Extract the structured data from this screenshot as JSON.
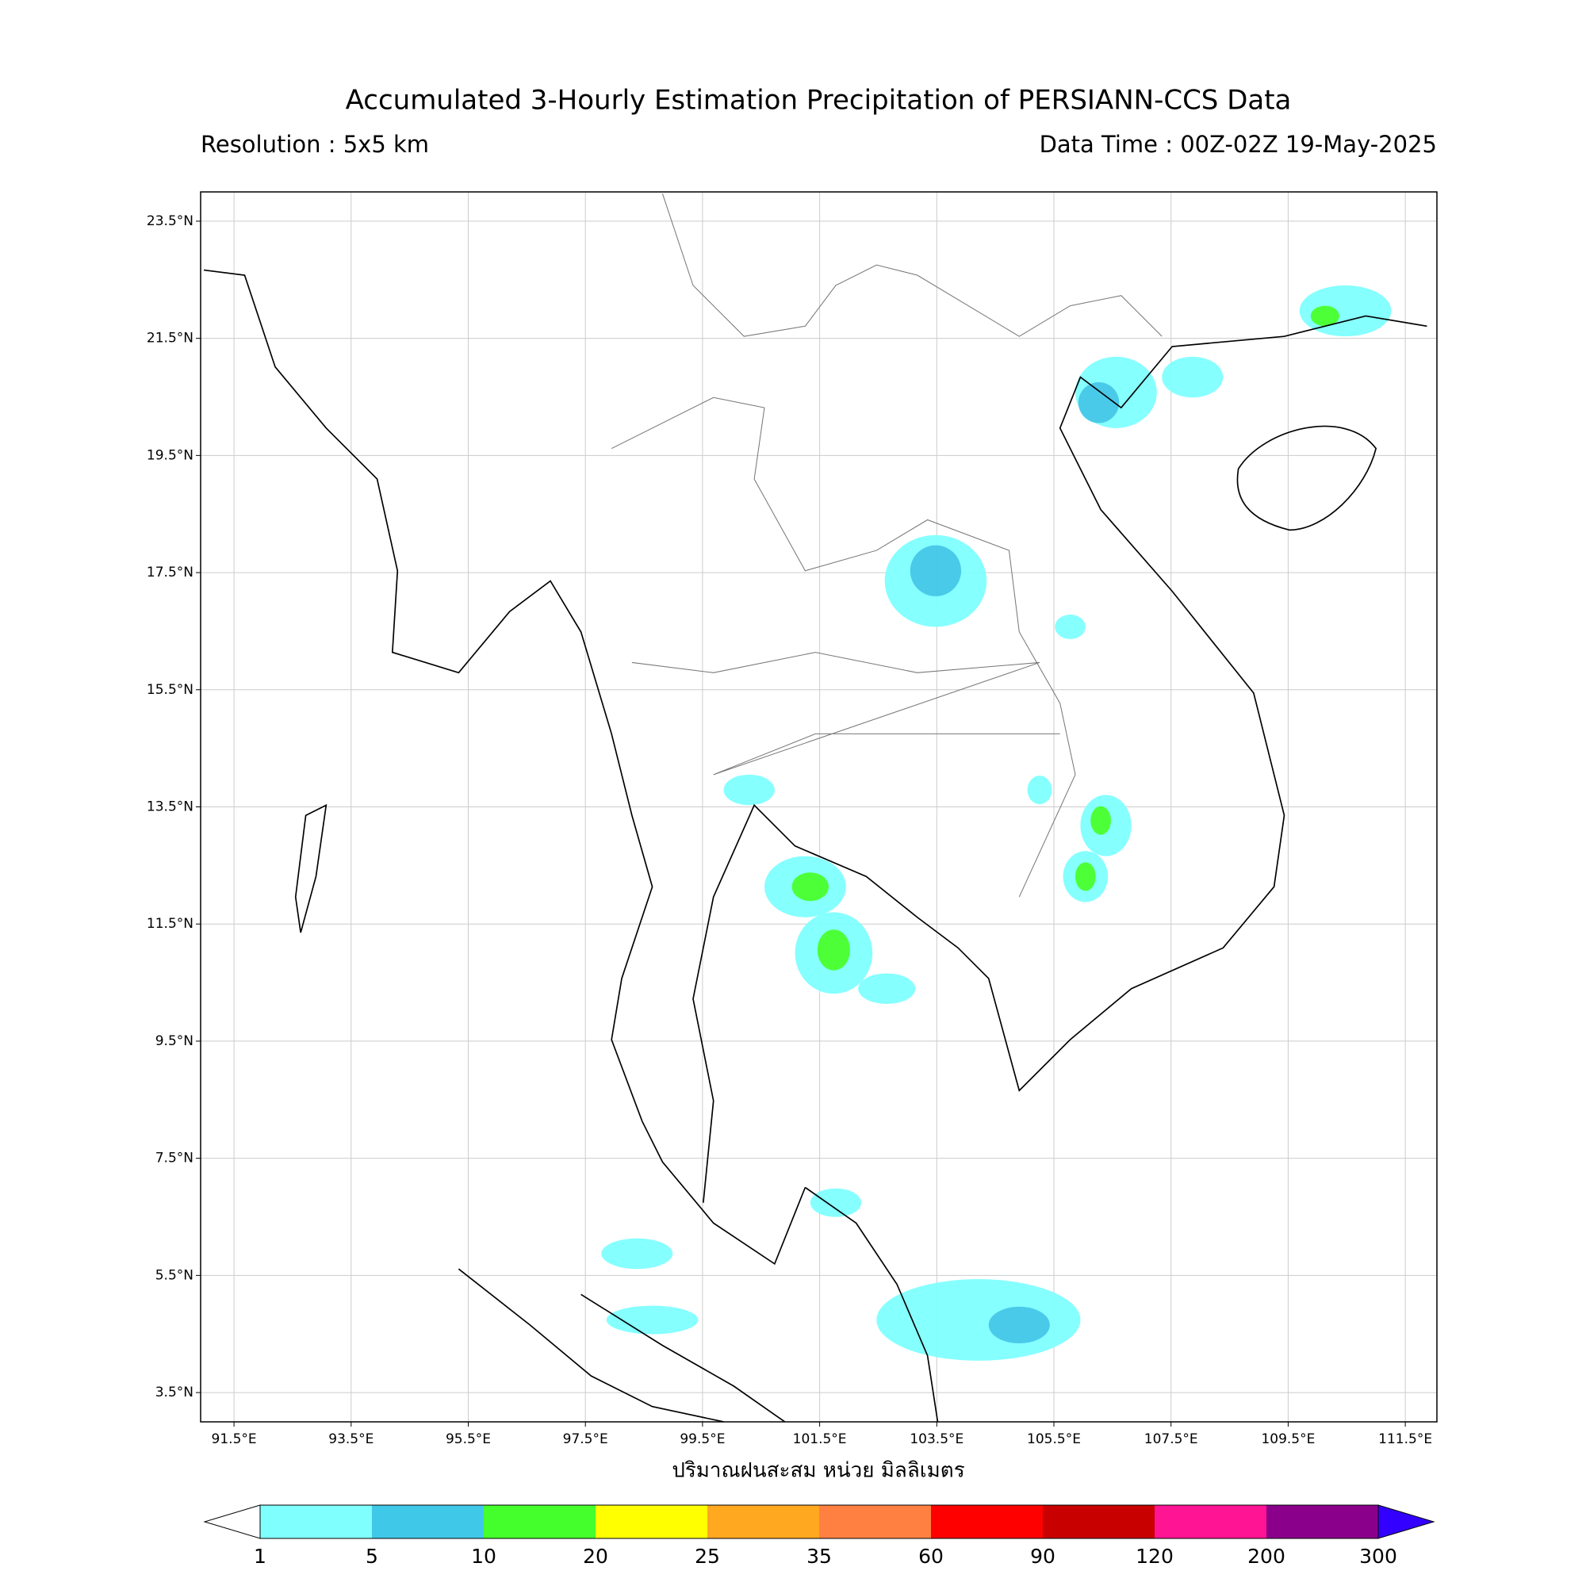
{
  "title": "Accumulated 3-Hourly Estimation Precipitation of PERSIANN-CCS Data",
  "resolution": "Resolution : 5x5 km",
  "data_time": "Data Time : 00Z-02Z 19-May-2025",
  "xlabel": "ปริมาณฝนสะสม หน่วย มิลลิเมตร",
  "xlim": [
    90.93,
    112.04
  ],
  "ylim": [
    3.0,
    24.0
  ],
  "grid": true,
  "xticks": [
    {
      "value": 91.5,
      "label": "91.5°E"
    },
    {
      "value": 93.5,
      "label": "93.5°E"
    },
    {
      "value": 95.5,
      "label": "95.5°E"
    },
    {
      "value": 97.5,
      "label": "97.5°E"
    },
    {
      "value": 99.5,
      "label": "99.5°E"
    },
    {
      "value": 101.5,
      "label": "101.5°E"
    },
    {
      "value": 103.5,
      "label": "103.5°E"
    },
    {
      "value": 105.5,
      "label": "105.5°E"
    },
    {
      "value": 107.5,
      "label": "107.5°E"
    },
    {
      "value": 109.5,
      "label": "109.5°E"
    },
    {
      "value": 111.5,
      "label": "111.5°E"
    }
  ],
  "yticks": [
    {
      "value": 3.5,
      "label": "3.5°N"
    },
    {
      "value": 5.5,
      "label": "5.5°N"
    },
    {
      "value": 7.5,
      "label": "7.5°N"
    },
    {
      "value": 9.5,
      "label": "9.5°N"
    },
    {
      "value": 11.5,
      "label": "11.5°N"
    },
    {
      "value": 13.5,
      "label": "13.5°N"
    },
    {
      "value": 15.5,
      "label": "15.5°N"
    },
    {
      "value": 17.5,
      "label": "17.5°N"
    },
    {
      "value": 19.5,
      "label": "19.5°N"
    },
    {
      "value": 21.5,
      "label": "21.5°N"
    },
    {
      "value": 23.5,
      "label": "23.5°N"
    }
  ],
  "colorbar": {
    "levels": [
      1,
      5,
      10,
      20,
      25,
      35,
      60,
      90,
      120,
      200,
      300
    ],
    "colors": [
      "#80ffff",
      "#40c8e8",
      "#44ff2c",
      "#ffff00",
      "#ffa820",
      "#ff8040",
      "#ff0000",
      "#c80000",
      "#ff1493",
      "#8b008b"
    ],
    "under_color": "#ffffff",
    "over_color": "#3300ff"
  }
}
